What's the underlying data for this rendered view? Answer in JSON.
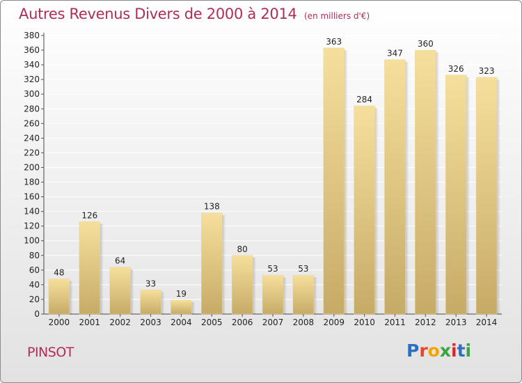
{
  "header": {
    "title": "Autres Revenus Divers de 2000 à 2014",
    "subtitle": "(en milliers d'€)"
  },
  "footer": {
    "commune": "PINSOT",
    "logo": "Proxiti"
  },
  "colors": {
    "accent": "#b02d55",
    "bar_light": "#f6df9c",
    "bar_dark": "#c6ab67"
  },
  "chart_data": {
    "type": "bar",
    "categories": [
      "2000",
      "2001",
      "2002",
      "2003",
      "2004",
      "2005",
      "2006",
      "2007",
      "2008",
      "2009",
      "2010",
      "2011",
      "2012",
      "2013",
      "2014"
    ],
    "values": [
      48,
      126,
      64,
      33,
      19,
      138,
      80,
      53,
      53,
      363,
      284,
      347,
      360,
      326,
      323
    ],
    "title": "Autres Revenus Divers de 2000 à 2014",
    "subtitle": "(en milliers d'€)",
    "xlabel": "",
    "ylabel": "",
    "ylim": [
      0,
      380
    ],
    "yticks": [
      0,
      20,
      40,
      60,
      80,
      100,
      120,
      140,
      160,
      180,
      200,
      220,
      240,
      260,
      280,
      300,
      320,
      340,
      360,
      380
    ],
    "grid": true,
    "legend": "none",
    "data_labels": true
  }
}
